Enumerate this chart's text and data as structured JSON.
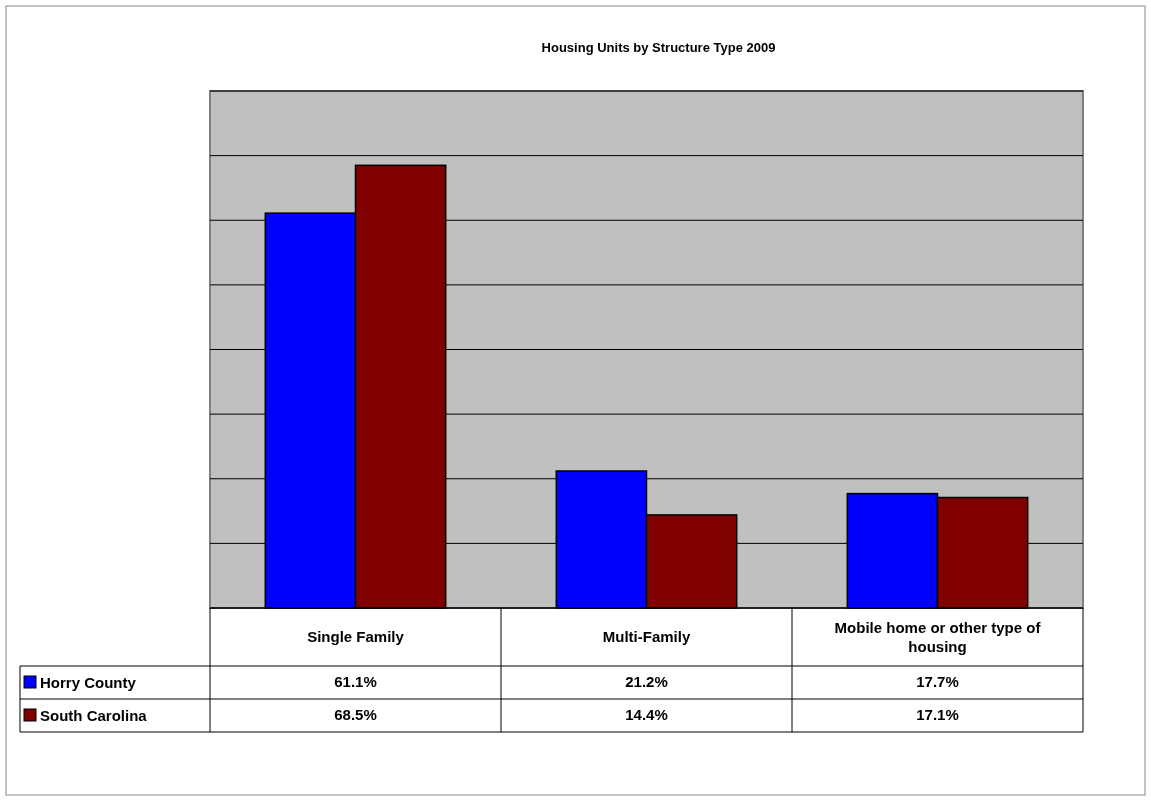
{
  "chart_data": {
    "type": "bar",
    "title": "Housing Units by Structure Type 2009",
    "categories": [
      "Single Family",
      "Multi-Family",
      "Mobile home or other type of housing"
    ],
    "series": [
      {
        "name": "Horry County",
        "color": "#0000ff",
        "values": [
          61.1,
          21.2,
          17.7
        ],
        "value_labels": [
          "61.1%",
          "21.2%",
          "17.7%"
        ]
      },
      {
        "name": "South Carolina",
        "color": "#800000",
        "values": [
          68.5,
          14.4,
          17.1
        ],
        "value_labels": [
          "68.5%",
          "14.4%",
          "17.1%"
        ]
      }
    ],
    "ylim": [
      0,
      80
    ],
    "yticks": [
      {
        "value": 0,
        "label": null
      },
      {
        "value": 10,
        "label": null
      },
      {
        "value": 20,
        "label": null
      },
      {
        "value": 30,
        "label": null
      },
      {
        "value": 40,
        "label": null
      },
      {
        "value": 50,
        "label": null
      },
      {
        "value": 60,
        "label": null
      },
      {
        "value": 70,
        "label": null
      },
      {
        "value": 80,
        "label": null
      }
    ],
    "tick_labels": "x",
    "grid": "y",
    "legend": "left"
  }
}
